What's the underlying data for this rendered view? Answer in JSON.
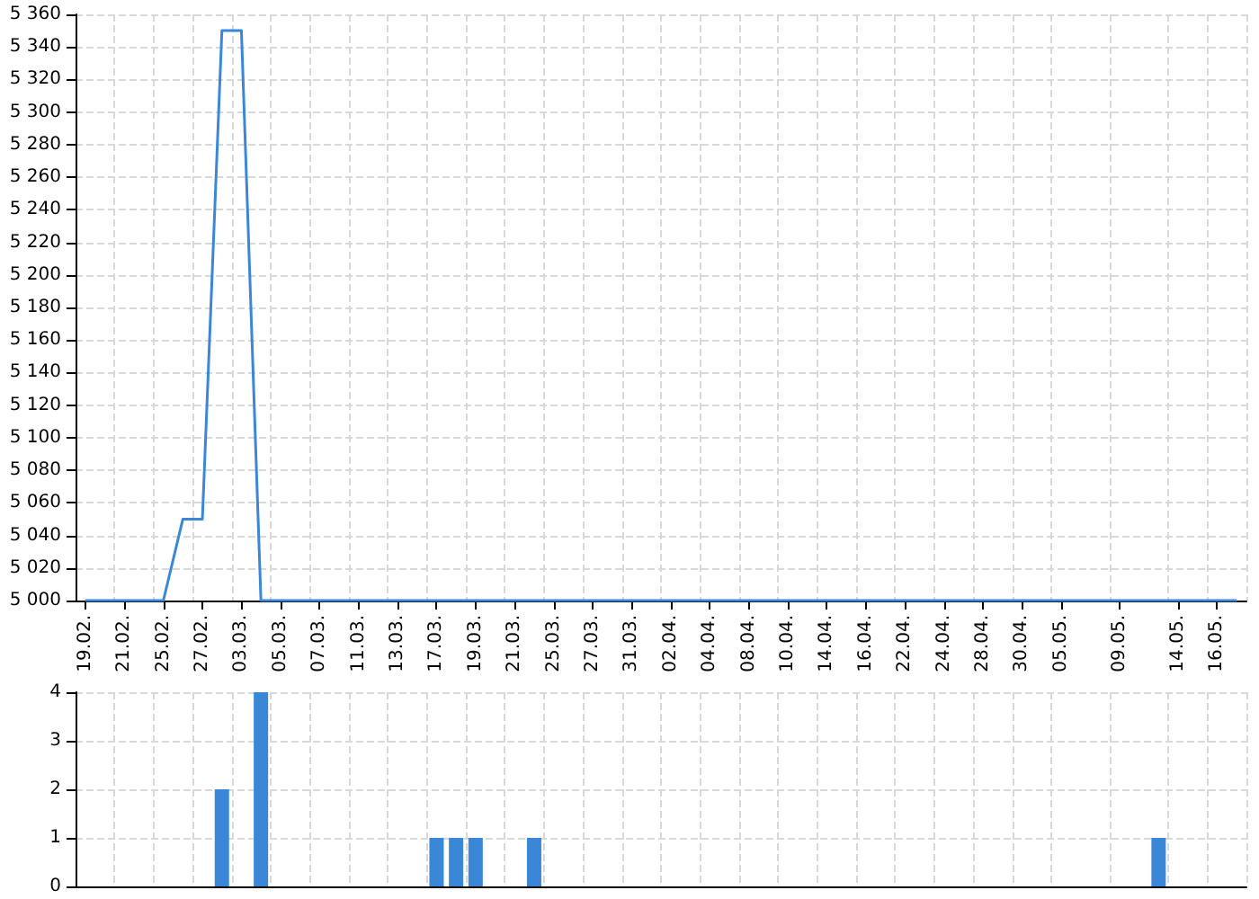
{
  "chart_data": [
    {
      "type": "line",
      "categories": [
        "19.02.",
        null,
        "21.02.",
        null,
        "25.02.",
        null,
        "27.02.",
        null,
        "03.03.",
        null,
        "05.03.",
        null,
        "07.03.",
        null,
        "11.03.",
        null,
        "13.03.",
        null,
        "17.03.",
        null,
        "19.03.",
        null,
        "21.03.",
        null,
        "25.03.",
        null,
        "27.03.",
        null,
        "31.03.",
        null,
        "02.04.",
        null,
        "04.04.",
        null,
        "08.04.",
        null,
        "10.04.",
        null,
        "14.04.",
        null,
        "16.04.",
        null,
        "22.04.",
        null,
        "24.04.",
        null,
        "28.04.",
        null,
        "30.04.",
        null,
        "05.05.",
        null,
        null,
        "09.05.",
        null,
        null,
        "14.05.",
        null,
        "16.05.",
        null
      ],
      "series": [
        {
          "color": "#3a87d8",
          "values": [
            5000,
            5000,
            5000,
            5000,
            5000,
            5050,
            5050,
            5350,
            5350,
            5000,
            5000,
            5000,
            5000,
            5000,
            5000,
            5000,
            5000,
            5000,
            5000,
            5000,
            5000,
            5000,
            5000,
            5000,
            5000,
            5000,
            5000,
            5000,
            5000,
            5000,
            5000,
            5000,
            5000,
            5000,
            5000,
            5000,
            5000,
            5000,
            5000,
            5000,
            5000,
            5000,
            5000,
            5000,
            5000,
            5000,
            5000,
            5000,
            5000,
            5000,
            5000,
            5000,
            5000,
            5000,
            5000,
            5000,
            5000,
            5000,
            5000,
            5000
          ]
        }
      ],
      "ylim": [
        5000,
        5360
      ],
      "yticks": [
        {
          "value": 5000,
          "label": "5 000"
        },
        {
          "value": 5020,
          "label": "5 020"
        },
        {
          "value": 5040,
          "label": "5 040"
        },
        {
          "value": 5060,
          "label": "5 060"
        },
        {
          "value": 5080,
          "label": "5 080"
        },
        {
          "value": 5100,
          "label": "5 100"
        },
        {
          "value": 5120,
          "label": "5 120"
        },
        {
          "value": 5140,
          "label": "5 140"
        },
        {
          "value": 5160,
          "label": "5 160"
        },
        {
          "value": 5180,
          "label": "5 180"
        },
        {
          "value": 5200,
          "label": "5 200"
        },
        {
          "value": 5220,
          "label": "5 220"
        },
        {
          "value": 5240,
          "label": "5 240"
        },
        {
          "value": 5260,
          "label": "5 260"
        },
        {
          "value": 5280,
          "label": "5 280"
        },
        {
          "value": 5300,
          "label": "5 300"
        },
        {
          "value": 5320,
          "label": "5 320"
        },
        {
          "value": 5340,
          "label": "5 340"
        },
        {
          "value": 5360,
          "label": "5 360"
        }
      ],
      "grid": true,
      "marker": "none",
      "line_style": "solid"
    },
    {
      "type": "bar",
      "categories": [
        "19.02.",
        null,
        "21.02.",
        null,
        "25.02.",
        null,
        "27.02.",
        null,
        "03.03.",
        null,
        "05.03.",
        null,
        "07.03.",
        null,
        "11.03.",
        null,
        "13.03.",
        null,
        "17.03.",
        null,
        "19.03.",
        null,
        "21.03.",
        null,
        "25.03.",
        null,
        "27.03.",
        null,
        "31.03.",
        null,
        "02.04.",
        null,
        "04.04.",
        null,
        "08.04.",
        null,
        "10.04.",
        null,
        "14.04.",
        null,
        "16.04.",
        null,
        "22.04.",
        null,
        "24.04.",
        null,
        "28.04.",
        null,
        "30.04.",
        null,
        "05.05.",
        null,
        null,
        "09.05.",
        null,
        null,
        "14.05.",
        null,
        "16.05.",
        null
      ],
      "series": [
        {
          "color": "#3a87d8",
          "values": [
            0,
            0,
            0,
            0,
            0,
            0,
            0,
            2,
            0,
            4,
            0,
            0,
            0,
            0,
            0,
            0,
            0,
            0,
            1,
            1,
            1,
            0,
            0,
            1,
            0,
            0,
            0,
            0,
            0,
            0,
            0,
            0,
            0,
            0,
            0,
            0,
            0,
            0,
            0,
            0,
            0,
            0,
            0,
            0,
            0,
            0,
            0,
            0,
            0,
            0,
            0,
            0,
            0,
            0,
            0,
            1,
            0,
            0,
            0,
            0
          ]
        }
      ],
      "ylim": [
        0,
        4
      ],
      "yticks": [
        0,
        1,
        2,
        3,
        4
      ],
      "grid": true,
      "tick_labels": "y"
    }
  ]
}
